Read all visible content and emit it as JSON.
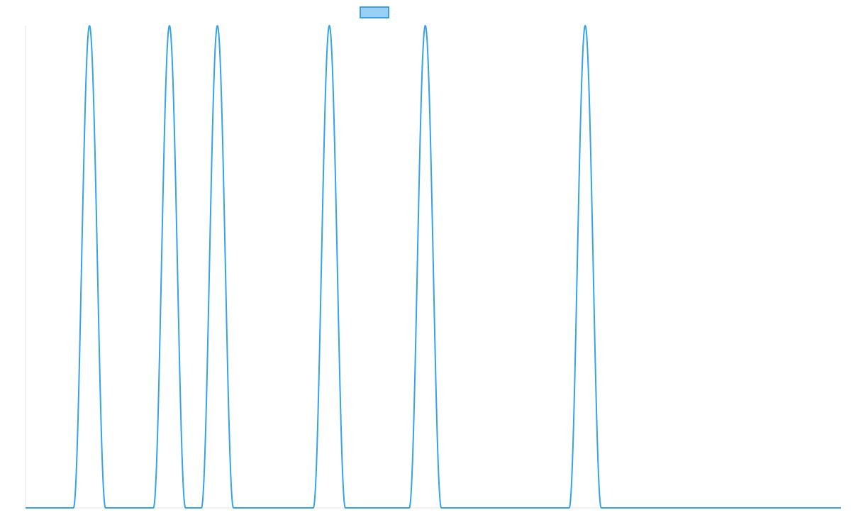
{
  "chart_data": {
    "type": "line",
    "legend": {
      "position": "top-center",
      "entries": [
        {
          "name": "",
          "color": "#36A2EB",
          "fill": "#9AD0F5"
        }
      ]
    },
    "xlim": [
      0,
      102
    ],
    "ylim": [
      0,
      1
    ],
    "grid": false,
    "axes_visible": false,
    "series": [
      {
        "name": "",
        "color": "#36A2EB",
        "peak_shape": "gaussian",
        "peak_half_width": 2,
        "peaks": [
          {
            "x": 8,
            "y": 1
          },
          {
            "x": 18,
            "y": 1
          },
          {
            "x": 24,
            "y": 1
          },
          {
            "x": 38,
            "y": 1
          },
          {
            "x": 50,
            "y": 1
          },
          {
            "x": 70,
            "y": 1
          }
        ]
      }
    ]
  }
}
